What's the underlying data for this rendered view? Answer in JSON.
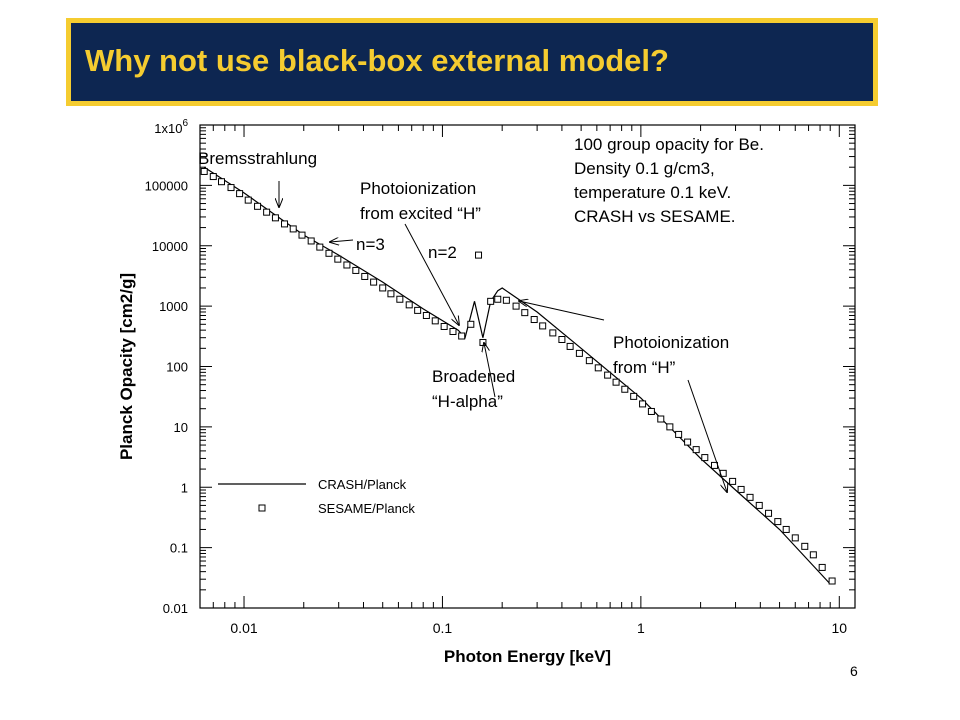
{
  "slide": {
    "title": "Why not use black-box external model?",
    "page_number": "6"
  },
  "colors": {
    "title_bg": "#0d2651",
    "title_border": "#f5cc30",
    "title_text": "#f5cc30"
  },
  "chart_data": {
    "type": "line",
    "title": "",
    "xlabel": "Photon Energy [keV]",
    "ylabel": "Planck Opacity [cm2/g]",
    "x_scale": "log",
    "y_scale": "log",
    "xlim": [
      0.006,
      12
    ],
    "ylim": [
      0.01,
      1000000
    ],
    "x_ticks": [
      {
        "value": 0.01,
        "label": "0.01"
      },
      {
        "value": 0.1,
        "label": "0.1"
      },
      {
        "value": 1,
        "label": "1"
      },
      {
        "value": 10,
        "label": "10"
      }
    ],
    "y_ticks": [
      {
        "value": 1000000,
        "label": "1x10",
        "sup": "6"
      },
      {
        "value": 100000,
        "label": "100000"
      },
      {
        "value": 10000,
        "label": "10000"
      },
      {
        "value": 1000,
        "label": "1000"
      },
      {
        "value": 100,
        "label": "100"
      },
      {
        "value": 10,
        "label": "10"
      },
      {
        "value": 1,
        "label": "1"
      },
      {
        "value": 0.1,
        "label": "0.1"
      },
      {
        "value": 0.01,
        "label": "0.01"
      }
    ],
    "grid": false,
    "legend": {
      "placement": "bottom-left",
      "entries": [
        "CRASH/Planck",
        "SESAME/Planck"
      ]
    },
    "series": [
      {
        "name": "CRASH/Planck",
        "style": "line",
        "x": [
          0.0063,
          0.01,
          0.02,
          0.03,
          0.05,
          0.08,
          0.12,
          0.13,
          0.145,
          0.16,
          0.175,
          0.19,
          0.2,
          0.3,
          0.5,
          1,
          2,
          3,
          5,
          9
        ],
        "y": [
          200000,
          75000,
          15000,
          7000,
          2500,
          900,
          400,
          300,
          1200,
          300,
          1200,
          1800,
          2000,
          800,
          200,
          30,
          3,
          0.9,
          0.2,
          0.025
        ]
      },
      {
        "name": "SESAME/Planck",
        "style": "markers",
        "x": [
          0.0063,
          0.007,
          0.0077,
          0.0086,
          0.0095,
          0.0105,
          0.0117,
          0.013,
          0.0144,
          0.016,
          0.0177,
          0.0196,
          0.0218,
          0.0241,
          0.0268,
          0.0297,
          0.033,
          0.0366,
          0.0406,
          0.045,
          0.05,
          0.055,
          0.061,
          0.068,
          0.075,
          0.083,
          0.092,
          0.102,
          0.113,
          0.125,
          0.139,
          0.152,
          0.16,
          0.175,
          0.19,
          0.21,
          0.235,
          0.26,
          0.29,
          0.32,
          0.36,
          0.4,
          0.44,
          0.49,
          0.55,
          0.61,
          0.68,
          0.75,
          0.83,
          0.92,
          1.02,
          1.13,
          1.26,
          1.4,
          1.55,
          1.72,
          1.9,
          2.1,
          2.35,
          2.6,
          2.9,
          3.2,
          3.55,
          3.95,
          4.4,
          4.9,
          5.4,
          6.0,
          6.7,
          7.4,
          8.2,
          9.2
        ],
        "y": [
          170000,
          140000,
          115000,
          92000,
          73000,
          57000,
          45000,
          36000,
          29000,
          23000,
          19000,
          15000,
          12000,
          9500,
          7500,
          6000,
          4800,
          3900,
          3100,
          2500,
          2000,
          1600,
          1300,
          1050,
          850,
          700,
          570,
          460,
          380,
          320,
          500,
          7000,
          250,
          1200,
          1300,
          1250,
          1000,
          780,
          600,
          470,
          360,
          280,
          215,
          165,
          125,
          95,
          72,
          55,
          42,
          32,
          24,
          18,
          13.5,
          10,
          7.5,
          5.6,
          4.2,
          3.1,
          2.3,
          1.7,
          1.25,
          0.92,
          0.68,
          0.5,
          0.37,
          0.27,
          0.2,
          0.145,
          0.105,
          0.076,
          0.047,
          0.028
        ]
      }
    ],
    "annotations": [
      {
        "lines": [
          "Bremsstrahlung"
        ]
      },
      {
        "lines": [
          "Photoionization",
          "from excited “H”"
        ]
      },
      {
        "lines": [
          "n=3"
        ]
      },
      {
        "lines": [
          "n=2"
        ]
      },
      {
        "lines": [
          "Broadened",
          "“H-alpha”"
        ]
      },
      {
        "lines": [
          "Photoionization",
          "from “H”"
        ]
      },
      {
        "lines": [
          "100 group opacity for Be.",
          "Density 0.1 g/cm3,",
          "temperature 0.1 keV.",
          "CRASH vs SESAME."
        ]
      }
    ]
  }
}
